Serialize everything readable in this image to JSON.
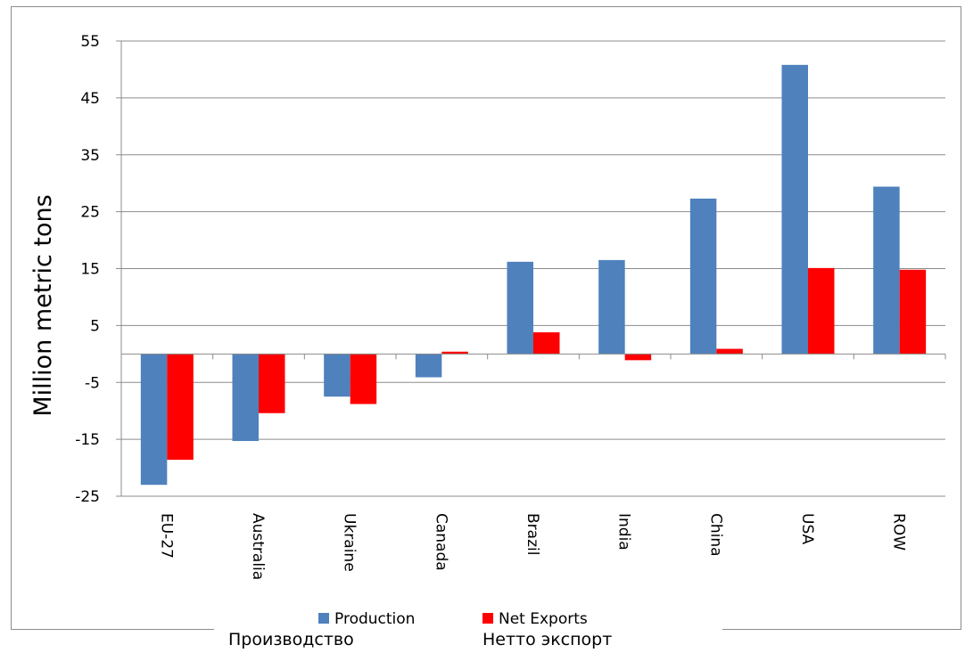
{
  "chart_data": {
    "type": "bar",
    "ylabel": "Million metric tons",
    "xlabel": "",
    "ylim": [
      -25,
      55
    ],
    "yticks": [
      -25,
      -15,
      -5,
      5,
      15,
      25,
      35,
      45,
      55
    ],
    "grid": true,
    "legend_position": "bottom",
    "categories": [
      "EU-27",
      "Australia",
      "Ukraine",
      "Canada",
      "Brazil",
      "India",
      "China",
      "USA",
      "ROW"
    ],
    "series": [
      {
        "name": "Production",
        "color": "#4f81bd",
        "values": [
          -23,
          -15.3,
          -7.5,
          -4.1,
          16.2,
          16.5,
          27.3,
          50.8,
          29.4
        ]
      },
      {
        "name": "Net Exports",
        "color": "#ff0000",
        "values": [
          -18.6,
          -10.4,
          -8.8,
          0.4,
          3.8,
          -1.1,
          0.9,
          15.1,
          14.8
        ]
      }
    ]
  },
  "captions": {
    "production_ru": "Производство",
    "net_exports_ru": "Нетто экспорт"
  }
}
